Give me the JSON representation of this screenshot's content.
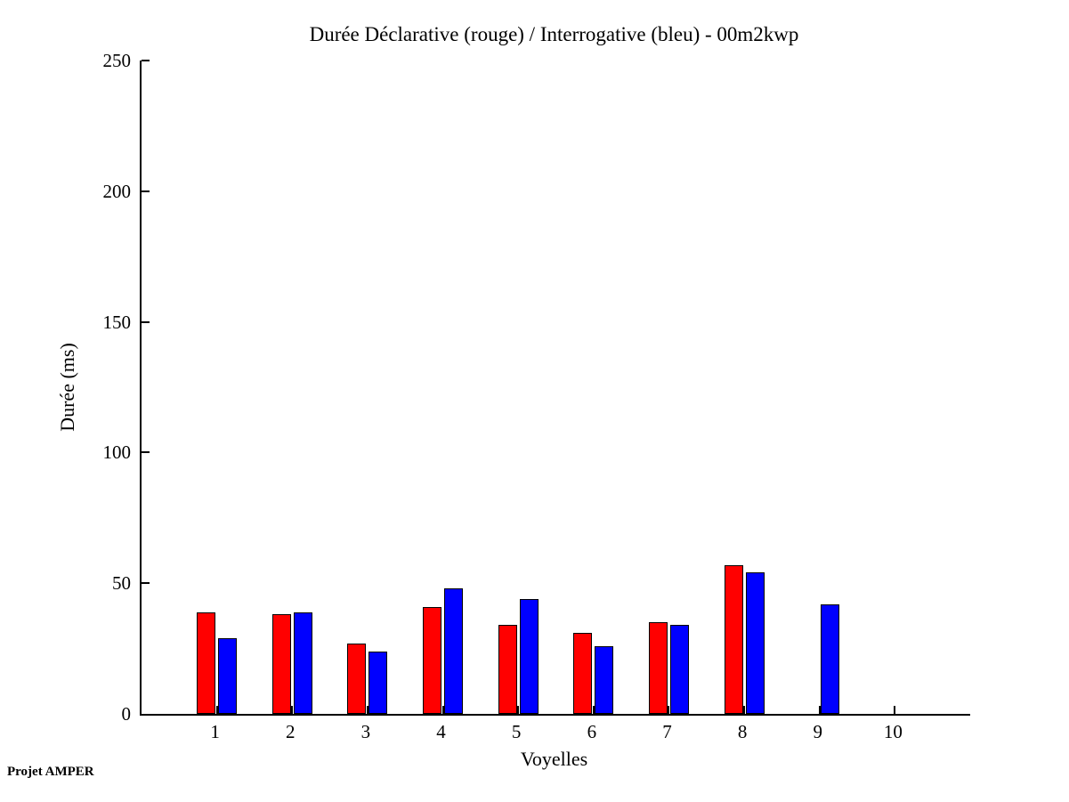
{
  "chart_data": {
    "type": "bar",
    "title": "Durée Déclarative (rouge) / Interrogative (bleu) - 00m2kwp",
    "xlabel": "Voyelles",
    "ylabel": "Durée (ms)",
    "categories": [
      "1",
      "2",
      "3",
      "4",
      "5",
      "6",
      "7",
      "8",
      "9",
      "10"
    ],
    "series": [
      {
        "name": "Déclarative (rouge)",
        "color": "#FF0000",
        "values": [
          39,
          38,
          27,
          41,
          34,
          31,
          35,
          57,
          0,
          0
        ]
      },
      {
        "name": "Interrogative (bleu)",
        "color": "#0000FF",
        "values": [
          29,
          39,
          24,
          48,
          44,
          26,
          34,
          54,
          42,
          0
        ]
      }
    ],
    "ylim": [
      0,
      250
    ],
    "xlim": [
      0,
      11
    ],
    "yticks": [
      0,
      50,
      100,
      150,
      200,
      250
    ],
    "grid": false,
    "legend": "none (colors explained in title)",
    "axis_color": "#000000",
    "background_color": "#FFFFFF"
  },
  "footer": {
    "text": "Projet AMPER"
  }
}
